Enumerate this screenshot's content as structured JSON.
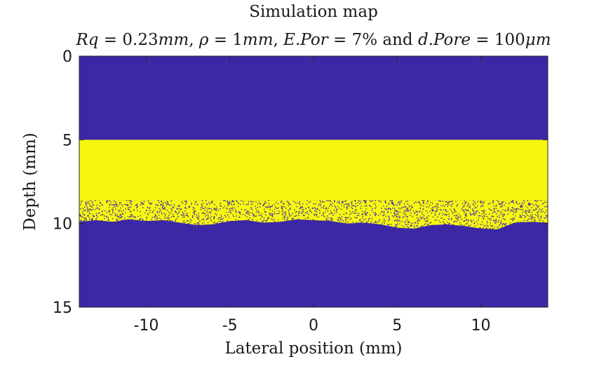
{
  "chart_data": {
    "type": "heatmap",
    "title": "Simulation map",
    "subtitle": {
      "parts": [
        {
          "t": "Rq",
          "i": true
        },
        {
          "t": " = 0.23",
          "i": false
        },
        {
          "t": "mm",
          "i": true
        },
        {
          "t": ", ",
          "i": false
        },
        {
          "t": "ρ",
          "i": true
        },
        {
          "t": " = 1",
          "i": false
        },
        {
          "t": "mm",
          "i": true
        },
        {
          "t": ", ",
          "i": false
        },
        {
          "t": "E.Por",
          "i": true
        },
        {
          "t": " = 7% and ",
          "i": false
        },
        {
          "t": "d.Pore",
          "i": true
        },
        {
          "t": " = 100",
          "i": false
        },
        {
          "t": "μm",
          "i": true
        }
      ]
    },
    "xlabel": "Lateral position (mm)",
    "ylabel": "Depth (mm)",
    "xlim": [
      -14,
      14
    ],
    "ylim": [
      0,
      15
    ],
    "y_reversed": true,
    "xticks": [
      -10,
      -5,
      0,
      5,
      10
    ],
    "xtick_labels": [
      "-10",
      "-5",
      "0",
      "5",
      "10"
    ],
    "yticks": [
      0,
      5,
      10,
      15
    ],
    "ytick_labels": [
      "0",
      "5",
      "10",
      "15"
    ],
    "colors": {
      "background": "#3c28a6",
      "coating": "#f8f80f"
    },
    "layers": {
      "solid_top_mm": 5.0,
      "solid_bottom_mm": 8.6,
      "pore_fraction_percent": 7,
      "pore_diameter_um": 100
    },
    "interface_profile": {
      "x": [
        -14,
        -13,
        -12,
        -11,
        -10,
        -9,
        -8,
        -7,
        -6,
        -5,
        -4,
        -3,
        -2,
        -1,
        0,
        1,
        2,
        3,
        4,
        5,
        6,
        7,
        8,
        9,
        10,
        11,
        12,
        13,
        14
      ],
      "depth": [
        9.9,
        9.8,
        9.9,
        9.75,
        9.85,
        9.8,
        9.95,
        10.1,
        10.05,
        9.85,
        9.8,
        9.95,
        9.9,
        9.75,
        9.8,
        9.85,
        10.0,
        9.95,
        10.05,
        10.25,
        10.3,
        10.1,
        10.05,
        10.15,
        10.3,
        10.35,
        9.95,
        9.9,
        9.95
      ]
    }
  }
}
